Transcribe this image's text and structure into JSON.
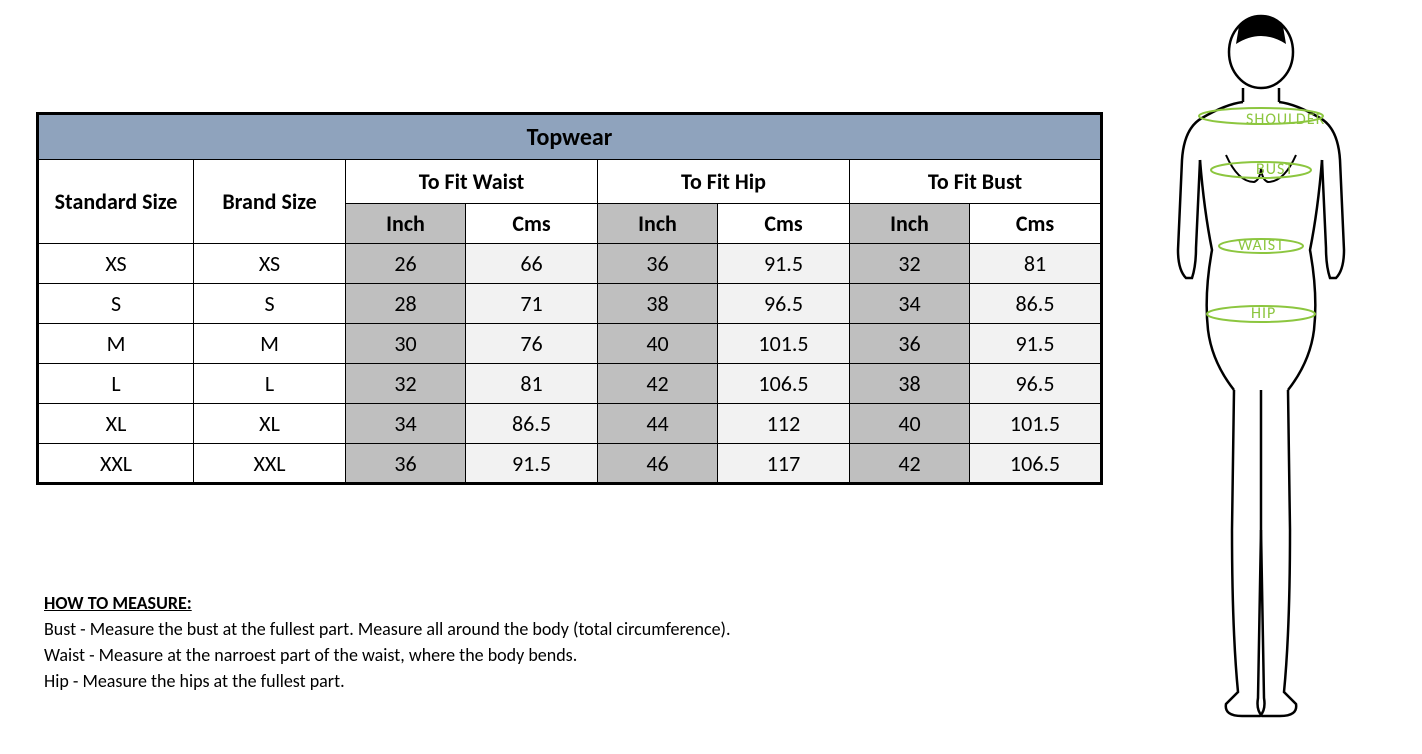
{
  "table": {
    "title": "Topwear",
    "header_bg": "#8fa3bd",
    "shaded_bg": "#bfbfbf",
    "light_bg": "#f2f2f2",
    "border_color": "#000000",
    "columns": {
      "standard": "Standard Size",
      "brand": "Brand Size",
      "groups": [
        {
          "label": "To Fit Waist",
          "units": [
            "Inch",
            "Cms"
          ]
        },
        {
          "label": "To Fit Hip",
          "units": [
            "Inch",
            "Cms"
          ]
        },
        {
          "label": "To Fit Bust",
          "units": [
            "Inch",
            "Cms"
          ]
        }
      ]
    },
    "rows": [
      {
        "standard": "XS",
        "brand": "XS",
        "waist_in": "26",
        "waist_cm": "66",
        "hip_in": "36",
        "hip_cm": "91.5",
        "bust_in": "32",
        "bust_cm": "81"
      },
      {
        "standard": "S",
        "brand": "S",
        "waist_in": "28",
        "waist_cm": "71",
        "hip_in": "38",
        "hip_cm": "96.5",
        "bust_in": "34",
        "bust_cm": "86.5"
      },
      {
        "standard": "M",
        "brand": "M",
        "waist_in": "30",
        "waist_cm": "76",
        "hip_in": "40",
        "hip_cm": "101.5",
        "bust_in": "36",
        "bust_cm": "91.5"
      },
      {
        "standard": "L",
        "brand": "L",
        "waist_in": "32",
        "waist_cm": "81",
        "hip_in": "42",
        "hip_cm": "106.5",
        "bust_in": "38",
        "bust_cm": "96.5"
      },
      {
        "standard": "XL",
        "brand": "XL",
        "waist_in": "34",
        "waist_cm": "86.5",
        "hip_in": "44",
        "hip_cm": "112",
        "bust_in": "40",
        "bust_cm": "101.5"
      },
      {
        "standard": "XXL",
        "brand": "XXL",
        "waist_in": "36",
        "waist_cm": "91.5",
        "hip_in": "46",
        "hip_cm": "117",
        "bust_in": "42",
        "bust_cm": "106.5"
      }
    ],
    "col_widths": {
      "standard": 156,
      "brand": 152,
      "unit": 120,
      "cms": 132
    },
    "font_size_body": 22,
    "font_size_title": 24
  },
  "instructions": {
    "heading": "HOW TO MEASURE:",
    "lines": [
      "Bust - Measure the bust at the fullest part. Measure all around the body (total circumference).",
      "Waist - Measure at the narroest part of the waist, where the body bends.",
      "Hip - Measure the hips at the fullest part."
    ]
  },
  "figure": {
    "label_color": "#8cc63f",
    "outline_color": "#000000",
    "labels": {
      "shoulder": "SHOULDER",
      "bust": "BUST",
      "waist": "WAIST",
      "hip": "HIP"
    }
  }
}
